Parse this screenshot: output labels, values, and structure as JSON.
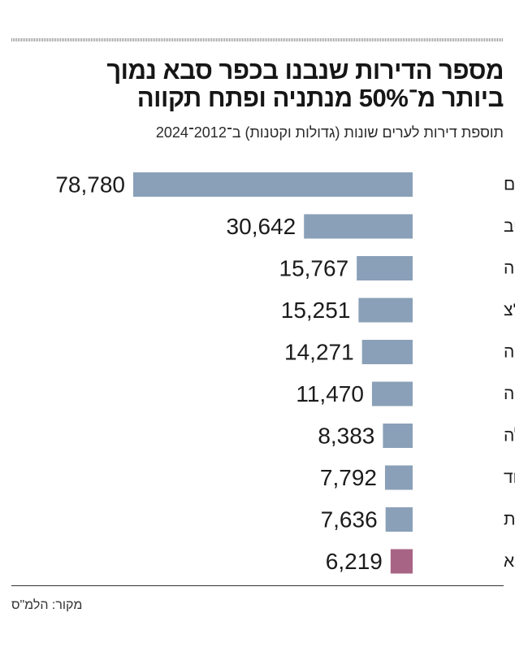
{
  "header": {
    "title_line1": "מספר הדירות שנבנו בכפר סבא נמוך",
    "title_line2": "ביותר מ־50% מנתניה ופתח תקווה",
    "subtitle": "תוספת דירות לערים שונות (גדולות וקטנות) ב־2012־2024"
  },
  "footer": {
    "source": "מקור: הלמ\"ס"
  },
  "chart_data": {
    "type": "bar",
    "orientation": "horizontal",
    "title": "מספר הדירות שנבנו בכפר סבא נמוך ביותר מ־50% מנתניה ופתח תקווה",
    "subtitle": "תוספת דירות לערים שונות (גדולות וקטנות) ב־2012־2024",
    "categories": [
      "ירושלים",
      "תל אביב",
      "פתח תקווה",
      "ראשל\"צ",
      "נתניה",
      "חיפה",
      "עפולה",
      "אשדוד",
      "קרית גת",
      "כפר סבא"
    ],
    "values": [
      78780,
      30642,
      15767,
      15251,
      14271,
      11470,
      8383,
      7792,
      7636,
      6219
    ],
    "value_labels": [
      "78,780",
      "30,642",
      "15,767",
      "15,251",
      "14,271",
      "11,470",
      "8,383",
      "7,792",
      "7,636",
      "6,219"
    ],
    "highlight": "כפר סבא",
    "xlim": [
      0,
      78780
    ],
    "grid": false,
    "legend": "none",
    "colors": {
      "bar": "#8aa0b8",
      "highlight": "#a86484",
      "text": "#1b1b1b"
    }
  }
}
